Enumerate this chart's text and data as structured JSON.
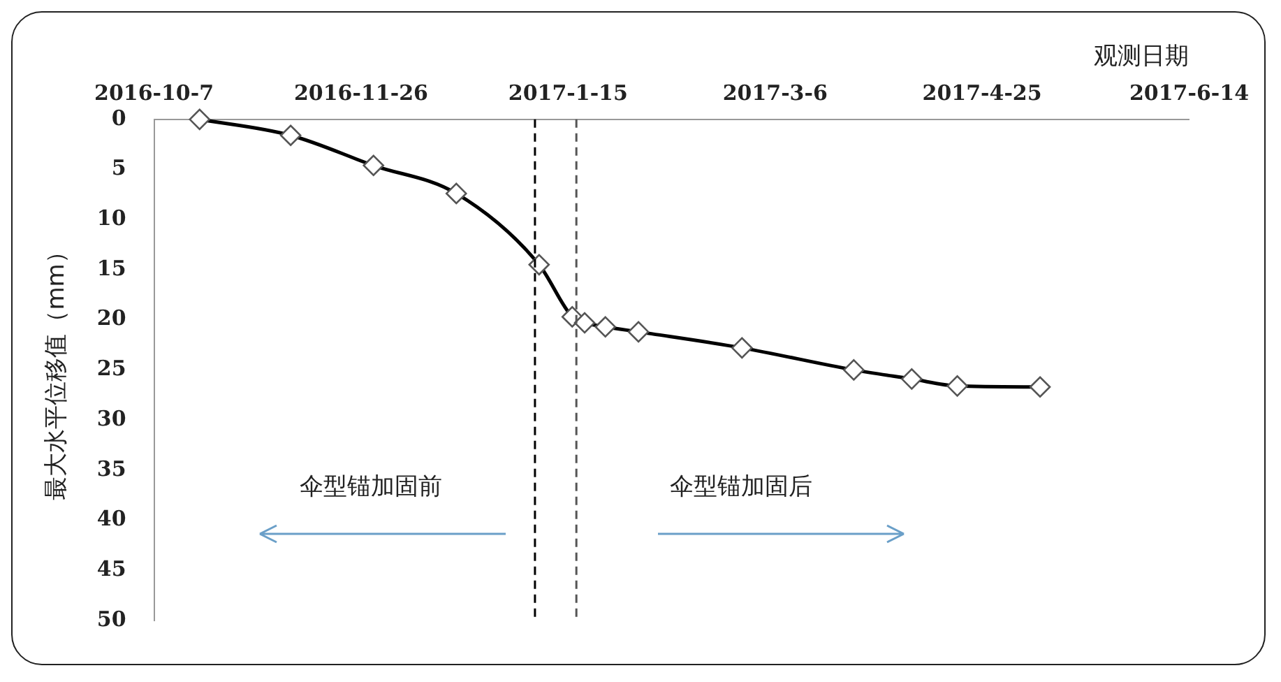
{
  "chart_data": {
    "type": "line",
    "xlabel": "观测日期",
    "ylabel": "最大水平位移值（mm）",
    "x": [
      "2016-10-18",
      "2016-11-09",
      "2016-11-29",
      "2016-12-19",
      "2017-01-08",
      "2017-01-16",
      "2017-01-19",
      "2017-01-24",
      "2017-02-01",
      "2017-02-26",
      "2017-03-25",
      "2017-04-08",
      "2017-04-19",
      "2017-05-09"
    ],
    "series": [
      {
        "color": "#000000",
        "values": [
          0,
          1.6,
          4.6,
          7.4,
          14.5,
          19.7,
          20.3,
          20.7,
          21.2,
          22.8,
          25.0,
          25.9,
          26.6,
          26.7
        ]
      }
    ],
    "xlim": [
      "2016-10-07",
      "2017-06-14"
    ],
    "xticks": [
      {
        "value": "2016-10-07",
        "label": "2016-10-7"
      },
      {
        "value": "2016-11-26",
        "label": "2016-11-26"
      },
      {
        "value": "2017-01-15",
        "label": "2017-1-15"
      },
      {
        "value": "2017-03-06",
        "label": "2017-3-6"
      },
      {
        "value": "2017-04-25",
        "label": "2017-4-25"
      },
      {
        "value": "2017-06-14",
        "label": "2017-6-14"
      }
    ],
    "ylim": [
      50,
      0
    ],
    "yticks": [
      0,
      5,
      10,
      15,
      20,
      25,
      30,
      35,
      40,
      45,
      50
    ],
    "grid": false,
    "legend": false,
    "marker": "diamond",
    "line_style": "solid",
    "ref_lines": [
      {
        "axis": "x",
        "value": "2017-01-07",
        "color": "#000000",
        "line_style": "dashed"
      },
      {
        "axis": "x",
        "value": "2017-01-17",
        "color": "#555555",
        "line_style": "dashed"
      }
    ],
    "annotations": [
      "伞型锚加固前",
      "伞型锚加固后"
    ]
  }
}
